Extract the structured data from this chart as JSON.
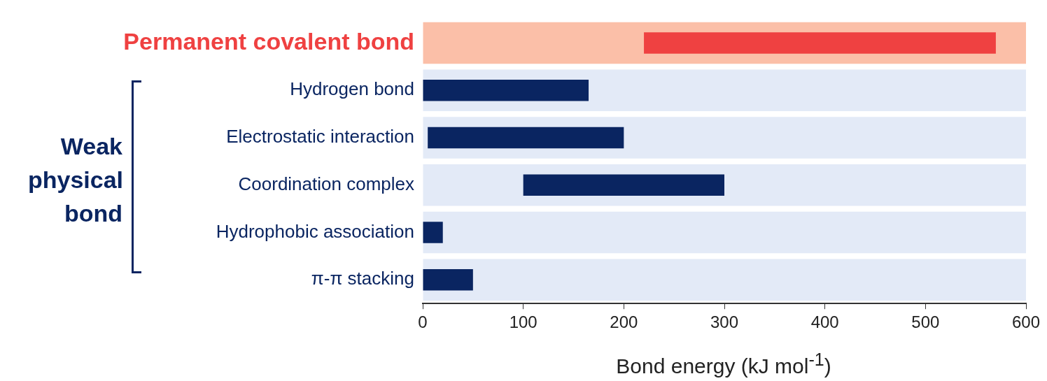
{
  "chart_data": {
    "type": "bar",
    "orientation": "horizontal",
    "categories": [
      "Permanent covalent bond",
      "Hydrogen bond",
      "Electrostatic interaction",
      "Coordination complex",
      "Hydrophobic association",
      "π-π stacking"
    ],
    "series": [
      {
        "values": [
          600,
          600,
          600,
          600,
          600,
          600
        ],
        "colors": [
          "#fbbfa8",
          "#e3eaf7",
          "#e3eaf7",
          "#e3eaf7",
          "#e3eaf7",
          "#e3eaf7"
        ]
      },
      {
        "base": [
          220,
          0,
          5,
          100,
          0,
          0
        ],
        "values": [
          350,
          165,
          195,
          200,
          20,
          50
        ],
        "colors": [
          "#ef4141",
          "#0a2561",
          "#0a2561",
          "#0a2561",
          "#0a2561",
          "#0a2561"
        ]
      }
    ],
    "xlim": [
      0,
      600
    ],
    "xticks": [
      0,
      100,
      200,
      300,
      400,
      500,
      600
    ],
    "xlabel": "Bond energy (kJ mol$^{-1}$)",
    "annotations": [
      "Weak physical bond"
    ],
    "grid": false,
    "legend": false
  }
}
